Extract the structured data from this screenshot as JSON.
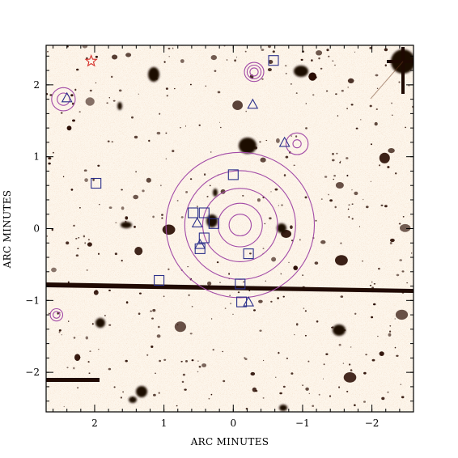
{
  "figure": {
    "xlabel": "ARC MINUTES",
    "ylabel": "ARC MINUTES",
    "xlim": [
      2.7,
      -2.6
    ],
    "ylim": [
      -2.55,
      2.55
    ],
    "x_ticks": [
      {
        "value": 2,
        "label": "2"
      },
      {
        "value": 1,
        "label": "1"
      },
      {
        "value": 0,
        "label": "0"
      },
      {
        "value": -1,
        "label": "−1"
      },
      {
        "value": -2,
        "label": "−2"
      }
    ],
    "y_ticks": [
      {
        "value": 2,
        "label": "2"
      },
      {
        "value": 1,
        "label": "1"
      },
      {
        "value": 0,
        "label": "0"
      },
      {
        "value": -1,
        "label": "−1"
      },
      {
        "value": -2,
        "label": "−2"
      }
    ],
    "colors": {
      "background": "#fdf6ec",
      "galaxy": "#2a0d03",
      "contour": "#a24aa7",
      "marker": "#2b2f8a",
      "star_marker": "#d6302a"
    },
    "contour_groups": [
      {
        "x": -0.1,
        "y": 0.05,
        "radii": [
          0.16,
          0.32,
          0.54,
          0.8,
          1.07
        ]
      },
      {
        "x": 2.45,
        "y": 1.8,
        "radii": [
          0.09,
          0.17
        ]
      },
      {
        "x": -0.3,
        "y": 2.18,
        "radii": [
          0.06,
          0.1,
          0.14
        ]
      },
      {
        "x": -0.92,
        "y": 1.18,
        "radii": [
          0.06,
          0.16
        ]
      },
      {
        "x": 2.55,
        "y": -1.2,
        "radii": [
          0.05,
          0.09
        ]
      }
    ],
    "square_markers": [
      [
        -0.58,
        2.34
      ],
      [
        1.98,
        0.63
      ],
      [
        0.0,
        0.75
      ],
      [
        0.58,
        0.22
      ],
      [
        0.42,
        0.22
      ],
      [
        0.28,
        0.07
      ],
      [
        0.42,
        -0.13
      ],
      [
        0.48,
        -0.28
      ],
      [
        -0.22,
        -0.35
      ],
      [
        1.07,
        -0.72
      ],
      [
        -0.1,
        -0.77
      ],
      [
        -0.12,
        -1.02
      ]
    ],
    "triangle_markers": [
      [
        2.4,
        1.82
      ],
      [
        -0.28,
        1.73
      ],
      [
        -0.74,
        1.2
      ],
      [
        0.52,
        0.08
      ],
      [
        0.48,
        -0.22
      ],
      [
        -0.22,
        -1.02
      ]
    ],
    "star_markers": [
      [
        2.05,
        2.33
      ]
    ]
  }
}
